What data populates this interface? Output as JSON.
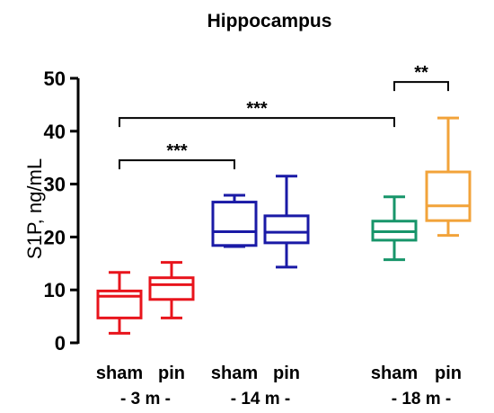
{
  "chart_data": {
    "type": "box",
    "title": "Hippocampus",
    "ylabel": "S1P, ng/mL",
    "xlabel": "",
    "ylim": [
      0,
      50
    ],
    "yticks": [
      0,
      10,
      20,
      30,
      40,
      50
    ],
    "grid": false,
    "legend": "none",
    "groups": [
      "- 3 m -",
      "- 14 m -",
      "- 18 m -"
    ],
    "categories": [
      "sham",
      "pin",
      "sham",
      "pin",
      "sham",
      "pin"
    ],
    "boxes": [
      {
        "category": "sham",
        "group": "- 3 m -",
        "color": "#e8141c",
        "min": 1.8,
        "q1": 4.7,
        "median": 8.8,
        "q3": 9.8,
        "max": 13.3
      },
      {
        "category": "pin",
        "group": "- 3 m -",
        "color": "#e8141c",
        "min": 4.7,
        "q1": 8.2,
        "median": 11.0,
        "q3": 12.3,
        "max": 15.2
      },
      {
        "category": "sham",
        "group": "- 14 m -",
        "color": "#1a1aa6",
        "min": 18.2,
        "q1": 18.4,
        "median": 21.0,
        "q3": 26.6,
        "max": 27.9
      },
      {
        "category": "pin",
        "group": "- 14 m -",
        "color": "#1a1aa6",
        "min": 14.3,
        "q1": 18.9,
        "median": 20.9,
        "q3": 24.0,
        "max": 31.5
      },
      {
        "category": "sham",
        "group": "- 18 m -",
        "color": "#17956a",
        "min": 15.7,
        "q1": 19.4,
        "median": 21.0,
        "q3": 23.0,
        "max": 27.6
      },
      {
        "category": "pin",
        "group": "- 18 m -",
        "color": "#f2a33a",
        "min": 20.3,
        "q1": 23.1,
        "median": 25.9,
        "q3": 32.3,
        "max": 42.5
      }
    ],
    "significance": [
      {
        "from": 0,
        "to": 2,
        "y": 34.5,
        "label": "***"
      },
      {
        "from": 0,
        "to": 4,
        "y": 42.5,
        "label": "***"
      },
      {
        "from": 4,
        "to": 5,
        "y": 49.3,
        "label": "**"
      }
    ]
  }
}
